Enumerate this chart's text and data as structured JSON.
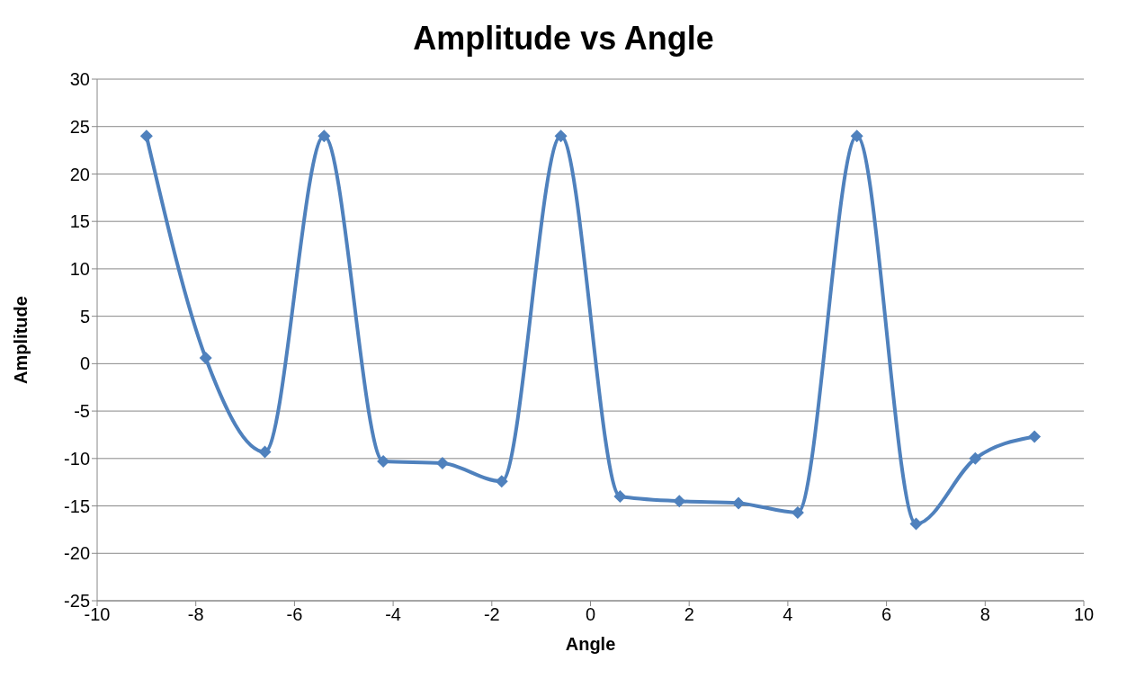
{
  "chart_data": {
    "type": "line",
    "title": "Amplitude vs Angle",
    "xlabel": "Angle",
    "ylabel": "Amplitude",
    "x": [
      -9,
      -7.8,
      -6.6,
      -5.4,
      -4.2,
      -3,
      -1.8,
      -0.6,
      0.6,
      1.8,
      3,
      4.2,
      5.4,
      6.6,
      7.8,
      9
    ],
    "series": [
      {
        "color": "#4f81bd",
        "values": [
          24,
          0.6,
          -9.3,
          24,
          -10.3,
          -10.5,
          -12.4,
          24,
          -14,
          -14.5,
          -14.7,
          -15.7,
          24,
          -16.9,
          -10,
          -7.7
        ]
      }
    ],
    "xlim": [
      -10,
      10
    ],
    "xticks": [
      -10,
      -8,
      -6,
      -4,
      -2,
      0,
      2,
      4,
      6,
      8,
      10
    ],
    "ylim": [
      -25,
      30
    ],
    "yticks": [
      -25,
      -20,
      -15,
      -10,
      -5,
      0,
      5,
      10,
      15,
      20,
      25,
      30
    ],
    "grid": "y",
    "marker": "diamond",
    "line_style": "solid"
  }
}
